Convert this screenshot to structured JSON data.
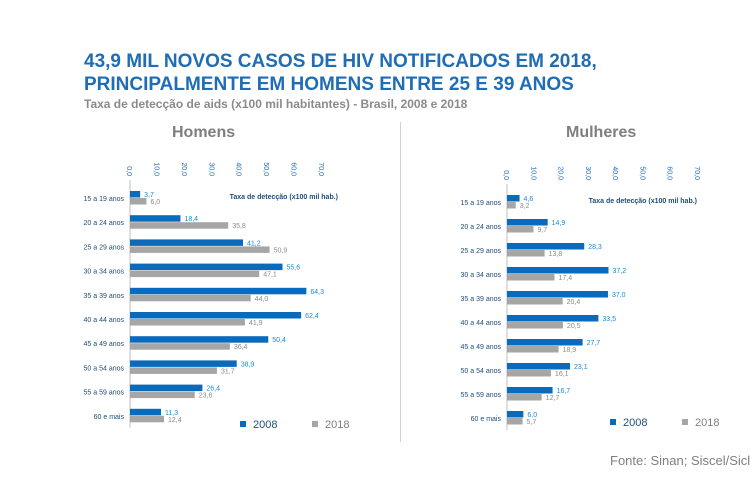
{
  "title_line1": "43,9 MIL NOVOS CASOS DE HIV NOTIFICADOS EM 2018,",
  "title_line2": "PRINCIPALMENTE EM HOMENS ENTRE 25 E 39 ANOS",
  "subtitle": "Taxa de detecção de aids (x100 mil habitantes) - Brasil, 2008 e 2018",
  "source": "Fonte: Sinan; Siscel/Siclom",
  "colors": {
    "2008": "#0a6bbd",
    "2018": "#a6a6a6",
    "title": "#1e6db5"
  },
  "chart_data": [
    {
      "type": "bar",
      "orientation": "horizontal",
      "title": "Homens",
      "xlabel": "Taxa de detecção (x100 mil hab.)",
      "xlim": [
        0,
        70
      ],
      "ticks": [
        "0,0",
        "10,0",
        "20,0",
        "30,0",
        "40,0",
        "50,0",
        "60,0",
        "70,0"
      ],
      "legend": "bottom-right",
      "categories": [
        "15 a 19 anos",
        "20 a 24 anos",
        "25 a 29 anos",
        "30 a 34 anos",
        "35 a 39 anos",
        "40 a 44 anos",
        "45 a 49 anos",
        "50 a 54 anos",
        "55 a 59 anos",
        "60 e mais"
      ],
      "series": [
        {
          "name": "2008",
          "values": [
            3.7,
            18.4,
            41.2,
            55.6,
            64.3,
            62.4,
            50.4,
            38.9,
            26.4,
            11.3
          ]
        },
        {
          "name": "2018",
          "values": [
            6.0,
            35.8,
            50.9,
            47.1,
            44.0,
            41.9,
            36.4,
            31.7,
            23.6,
            12.4
          ]
        }
      ]
    },
    {
      "type": "bar",
      "orientation": "horizontal",
      "title": "Mulheres",
      "xlabel": "Taxa de detecção (x100 mil hab.)",
      "xlim": [
        0,
        70
      ],
      "ticks": [
        "0,0",
        "10,0",
        "20,0",
        "30,0",
        "40,0",
        "50,0",
        "60,0",
        "70,0"
      ],
      "legend": "bottom-right",
      "categories": [
        "15 a 19 anos",
        "20 a 24 anos",
        "25 a 29 anos",
        "30 a 34 anos",
        "35 a 39 anos",
        "40 a 44 anos",
        "45 a 49 anos",
        "50 a 54 anos",
        "55 a 59 anos",
        "60 e mais"
      ],
      "series": [
        {
          "name": "2008",
          "values": [
            4.6,
            14.9,
            28.3,
            37.2,
            37.0,
            33.5,
            27.7,
            23.1,
            16.7,
            6.0
          ]
        },
        {
          "name": "2018",
          "values": [
            3.2,
            9.7,
            13.8,
            17.4,
            20.4,
            20.5,
            18.9,
            16.1,
            12.7,
            5.7
          ]
        }
      ]
    }
  ]
}
